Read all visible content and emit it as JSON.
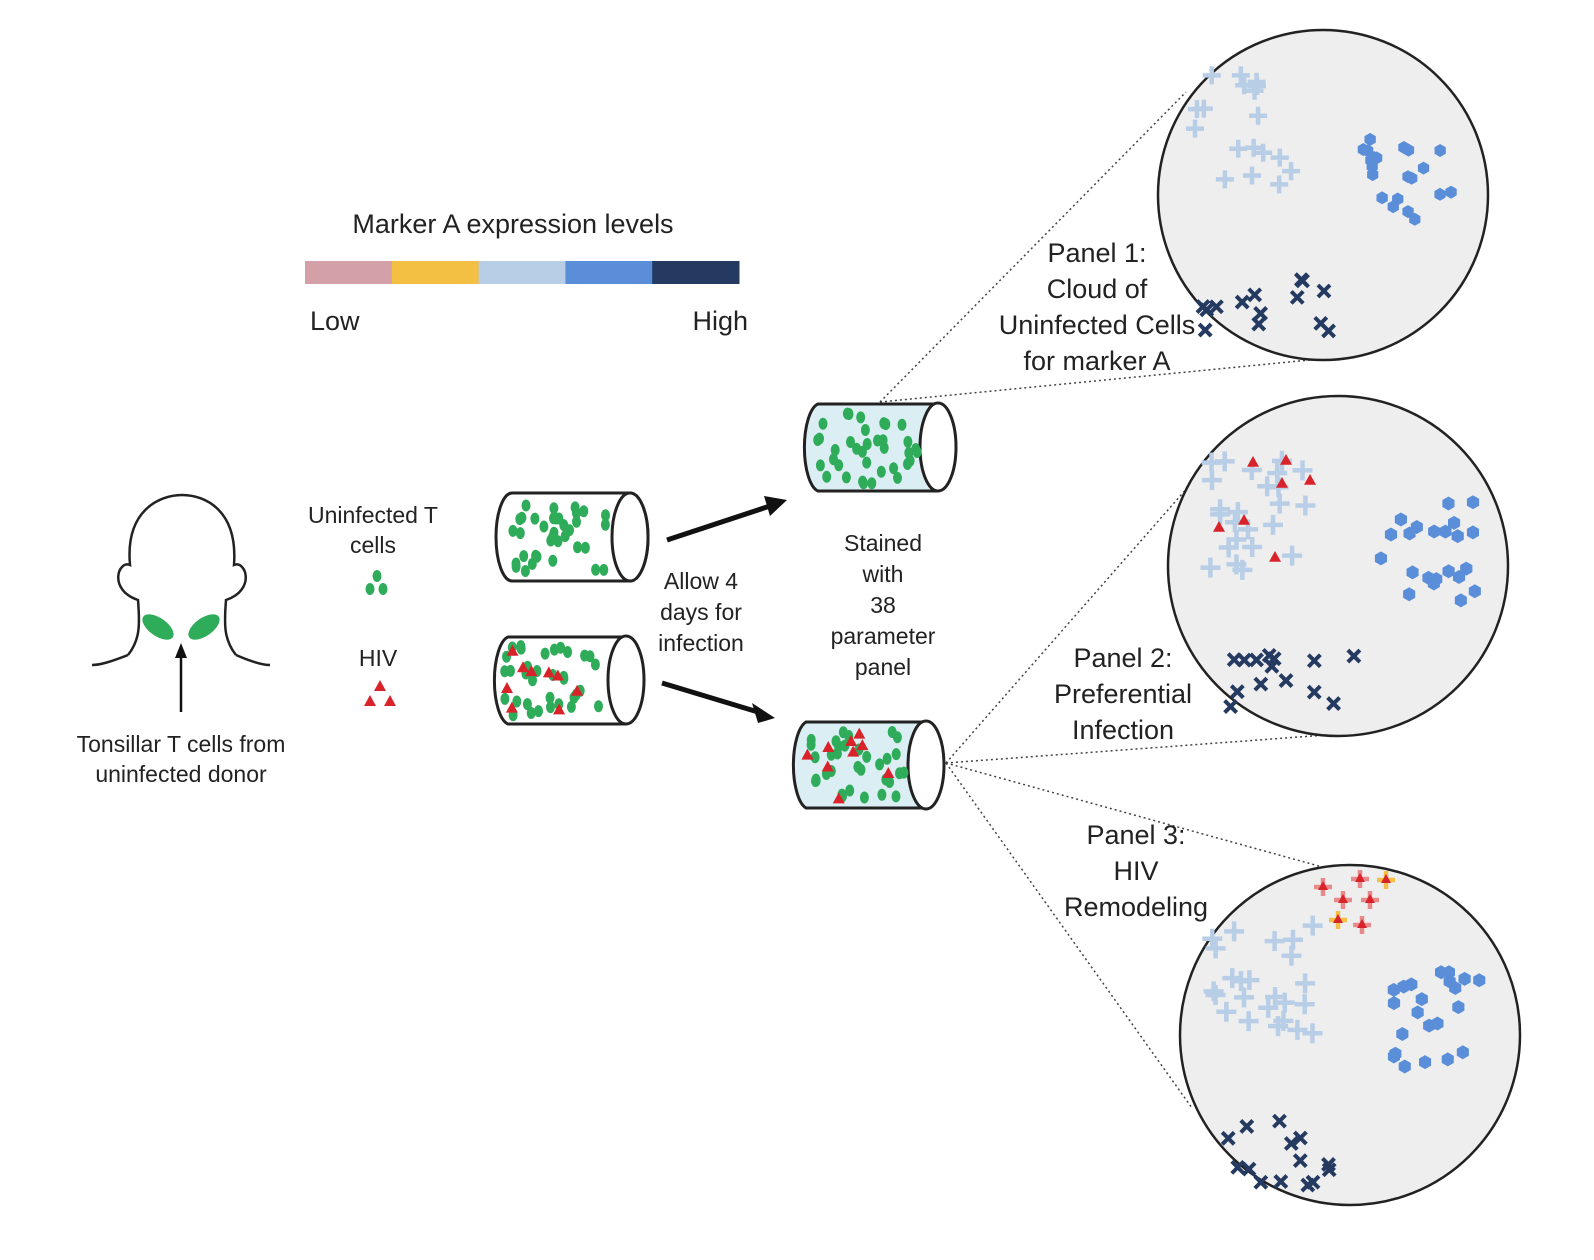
{
  "legend": {
    "title": "Marker A expression levels",
    "low_label": "Low",
    "high_label": "High",
    "colors": [
      "#d4a0a8",
      "#f3c043",
      "#b8cde6",
      "#5b8ed8",
      "#243a60"
    ]
  },
  "donor": {
    "label_line1": "Tonsillar T cells from",
    "label_line2": "uninfected donor"
  },
  "inputs": {
    "uninfected_line1": "Uninfected T",
    "uninfected_line2": "cells",
    "hiv_label": "HIV"
  },
  "step_infection": {
    "line1": "Allow 4",
    "line2": "days for",
    "line3": "infection"
  },
  "step_stain": {
    "line1": "Stained",
    "line2": "with",
    "line3": "38",
    "line4": "parameter",
    "line5": "panel"
  },
  "panels": [
    {
      "line1": "Panel 1:",
      "line2": "Cloud of",
      "line3": "Uninfected Cells",
      "line4": "for marker A"
    },
    {
      "line1": "Panel 2:",
      "line2": "Preferential",
      "line3": "Infection"
    },
    {
      "line1": "Panel 3:",
      "line2": "HIV",
      "line3": "Remodeling"
    }
  ],
  "colors": {
    "cell_green": "#2eac5a",
    "virus_red": "#d9232a",
    "tube_fill": "#dbeef3",
    "panel_fill": "#eeeeee",
    "arrow": "#111111"
  }
}
